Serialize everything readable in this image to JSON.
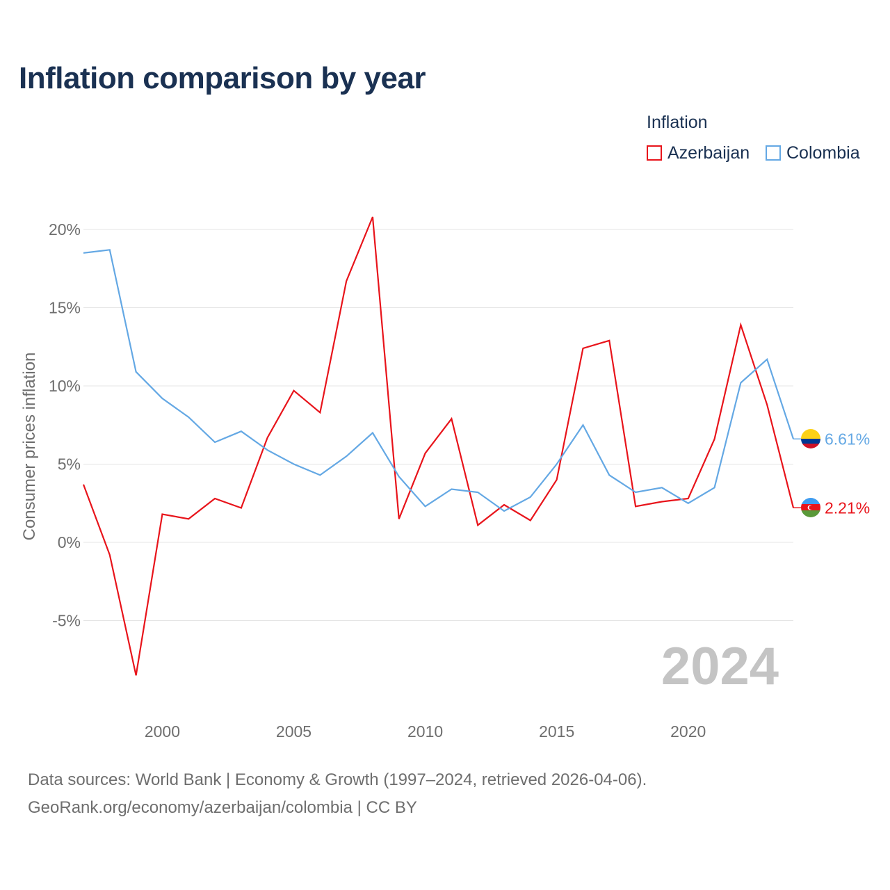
{
  "title": "Inflation comparison by year",
  "legend": {
    "title": "Inflation",
    "items": [
      {
        "name": "Azerbaijan",
        "color": "#e8141b"
      },
      {
        "name": "Colombia",
        "color": "#64a8e4"
      }
    ]
  },
  "source_line1": "Data sources: World Bank | Economy & Growth (1997–2024, retrieved 2026-04-06).",
  "source_line2": "GeoRank.org/economy/azerbaijan/colombia | CC BY",
  "chart_data": {
    "type": "line",
    "title": "Inflation comparison by year",
    "xlabel": "",
    "ylabel": "Consumer prices inflation",
    "xlim": [
      1997,
      2024
    ],
    "ylim": [
      -10,
      22
    ],
    "x_ticks": [
      2000,
      2005,
      2010,
      2015,
      2020
    ],
    "x_tick_labels": [
      "2000",
      "2005",
      "2010",
      "2015",
      "2020"
    ],
    "y_ticks": [
      -5,
      0,
      5,
      10,
      15,
      20
    ],
    "y_tick_labels": [
      "-5%",
      "0%",
      "5%",
      "10%",
      "15%",
      "20%"
    ],
    "grid": true,
    "watermark_year": "2024",
    "x": [
      1997,
      1998,
      1999,
      2000,
      2001,
      2002,
      2003,
      2004,
      2005,
      2006,
      2007,
      2008,
      2009,
      2010,
      2011,
      2012,
      2013,
      2014,
      2015,
      2016,
      2017,
      2018,
      2019,
      2020,
      2021,
      2022,
      2023,
      2024
    ],
    "series": [
      {
        "name": "Azerbaijan",
        "color": "#e8141b",
        "end_label": "2.21%",
        "values": [
          3.7,
          -0.8,
          -8.5,
          1.8,
          1.5,
          2.8,
          2.2,
          6.7,
          9.7,
          8.3,
          16.7,
          20.8,
          1.5,
          5.7,
          7.9,
          1.1,
          2.4,
          1.4,
          4.0,
          12.4,
          12.9,
          2.3,
          2.6,
          2.8,
          6.6,
          13.9,
          8.8,
          2.21
        ]
      },
      {
        "name": "Colombia",
        "color": "#64a8e4",
        "end_label": "6.61%",
        "values": [
          18.5,
          18.7,
          10.9,
          9.2,
          8.0,
          6.4,
          7.1,
          5.9,
          5.0,
          4.3,
          5.5,
          7.0,
          4.2,
          2.3,
          3.4,
          3.2,
          2.0,
          2.9,
          5.0,
          7.5,
          4.3,
          3.2,
          3.5,
          2.5,
          3.5,
          10.2,
          11.7,
          6.61
        ]
      }
    ]
  }
}
